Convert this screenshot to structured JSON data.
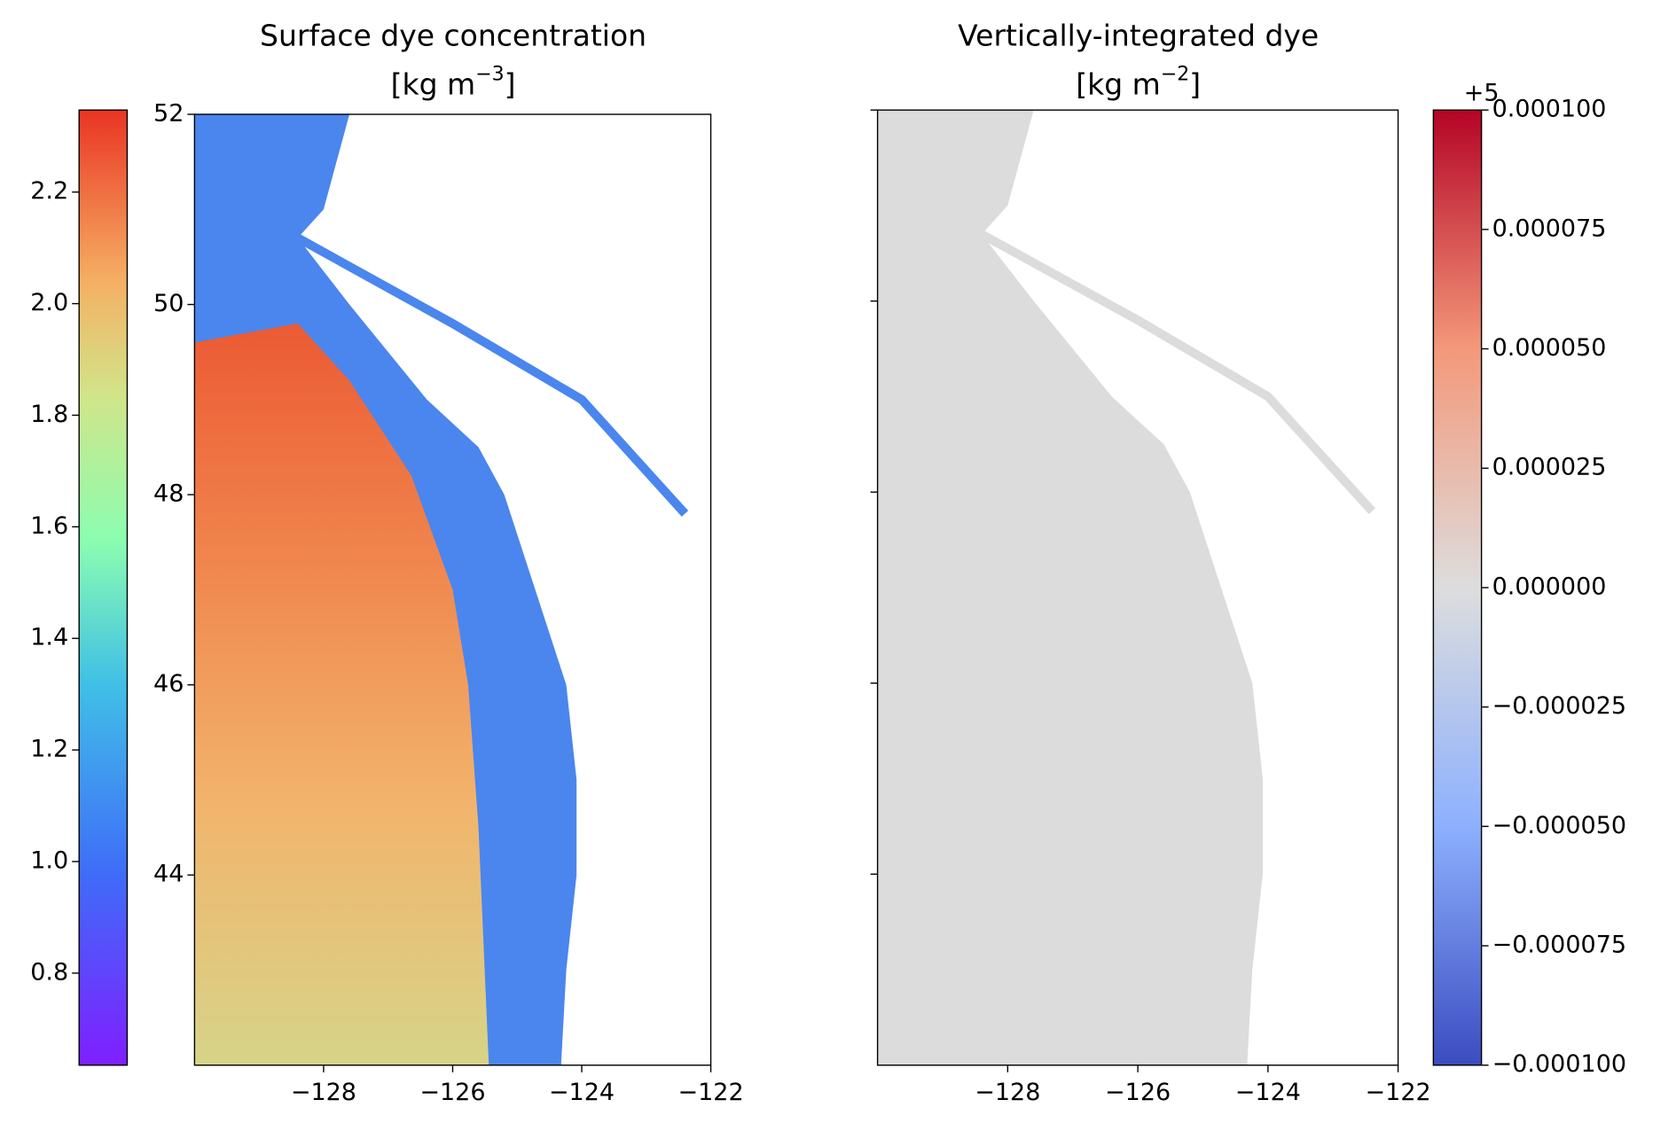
{
  "chart_data": [
    {
      "type": "map",
      "title": "Surface dye concentration",
      "units": {
        "base": "[kg m",
        "exponent": "−3",
        "close": "]"
      },
      "xlim": [
        -130,
        -122
      ],
      "xticks": [
        {
          "value": -128,
          "label": "−128"
        },
        {
          "value": -126,
          "label": "−126"
        },
        {
          "value": -124,
          "label": "−124"
        },
        {
          "value": -122,
          "label": "−122"
        }
      ],
      "ylim": [
        42,
        52
      ],
      "yticks": [
        44,
        46,
        48,
        50,
        52
      ],
      "colorbar": {
        "colormap": "rainbow",
        "clim": [
          0.635,
          2.347
        ],
        "ticks": [
          0.8,
          {
            "value": 1.0,
            "label": "1.0"
          },
          1.2,
          1.4,
          1.6,
          1.8,
          {
            "value": 2.0,
            "label": "2.0"
          },
          2.2
        ]
      }
    },
    {
      "type": "map",
      "title": "Vertically-integrated dye",
      "units": {
        "base": "[kg m",
        "exponent": "−2",
        "close": "]"
      },
      "xlim": [
        -130,
        -122
      ],
      "xticks": [
        {
          "value": -128,
          "label": "−128"
        },
        {
          "value": -126,
          "label": "−126"
        },
        {
          "value": -124,
          "label": "−124"
        },
        {
          "value": -122,
          "label": "−122"
        }
      ],
      "ylim": [
        42,
        52
      ],
      "yticks": [
        44,
        46,
        48,
        50,
        52
      ],
      "colorbar": {
        "colormap": "coolwarm",
        "clim": [
          -0.0001,
          0.0001
        ],
        "offset": "+5",
        "ticks": [
          {
            "value": -0.0001,
            "label": "−0.000100"
          },
          {
            "value": -7.5e-05,
            "label": "−0.000075"
          },
          {
            "value": -5e-05,
            "label": "−0.000050"
          },
          {
            "value": -2.5e-05,
            "label": "−0.000025"
          },
          {
            "value": 0,
            "label": "0.000000"
          },
          {
            "value": 2.5e-05,
            "label": "0.000025"
          },
          {
            "value": 5e-05,
            "label": "0.000050"
          },
          {
            "value": 7.5e-05,
            "label": "0.000075"
          },
          {
            "value": 0.0001,
            "label": "0.000100"
          }
        ]
      }
    }
  ]
}
